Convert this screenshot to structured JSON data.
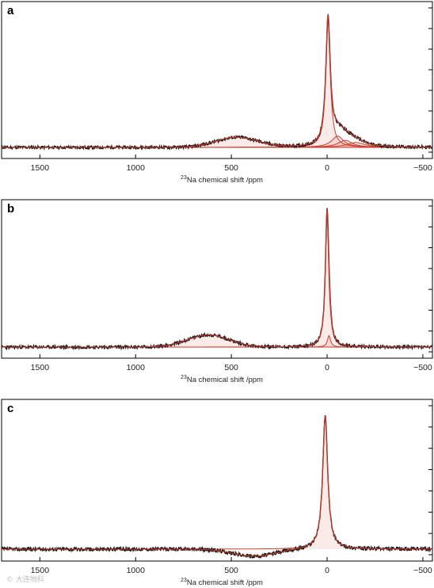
{
  "chart_data": [
    {
      "type": "line",
      "panel_label": "a",
      "xlabel_sup": "23",
      "xlabel": "Na chemical shift /ppm",
      "xlim": [
        1700,
        -550
      ],
      "x_reversed": true,
      "xticks": [
        1500,
        1000,
        500,
        0,
        -500
      ],
      "tick_labels": [
        "1500",
        "1000",
        "500",
        "0",
        "−500"
      ],
      "yticks_count": 8,
      "fit_components": [
        {
          "center": 470,
          "width": 110,
          "height": 0.07,
          "color": "#d23a2a"
        },
        {
          "center": -5,
          "width": 14,
          "height": 0.9,
          "color": "#d23a2a"
        },
        {
          "center": -55,
          "width": 38,
          "height": 0.08,
          "color": "#d23a2a"
        },
        {
          "center": -95,
          "width": 45,
          "height": 0.05,
          "color": "#d23a2a"
        },
        {
          "center": -150,
          "width": 55,
          "height": 0.035,
          "color": "#d23a2a"
        }
      ],
      "experimental": {
        "color": "#111111",
        "noise": 0.01,
        "seed": 11
      }
    },
    {
      "type": "line",
      "panel_label": "b",
      "xlabel_sup": "23",
      "xlabel": "Na chemical shift /ppm",
      "xlim": [
        1700,
        -550
      ],
      "x_reversed": true,
      "xticks": [
        1500,
        1000,
        500,
        0,
        -500
      ],
      "tick_labels": [
        "1500",
        "1000",
        "500",
        "0",
        "−500"
      ],
      "yticks_count": 8,
      "fit_components": [
        {
          "center": 620,
          "width": 110,
          "height": 0.085,
          "color": "#d23a2a"
        },
        {
          "center": 0,
          "width": 11,
          "height": 0.93,
          "color": "#d23a2a"
        },
        {
          "center": -10,
          "width": 10,
          "height": 0.08,
          "color": "#d23a2a"
        }
      ],
      "experimental": {
        "color": "#111111",
        "noise": 0.01,
        "seed": 23
      }
    },
    {
      "type": "line",
      "panel_label": "c",
      "xlabel_sup": "23",
      "xlabel": "Na chemical shift /ppm",
      "xlim": [
        1700,
        -550
      ],
      "x_reversed": true,
      "xticks": [
        1500,
        1000,
        500,
        0,
        -500
      ],
      "tick_labels": [
        "1500",
        "1000",
        "500",
        "0",
        "−500"
      ],
      "yticks_count": 8,
      "fit_components": [
        {
          "center": 10,
          "width": 16,
          "height": 0.92,
          "color": "#d23a2a"
        }
      ],
      "dip": {
        "center": 380,
        "width": 110,
        "depth": -0.05
      },
      "experimental": {
        "color": "#111111",
        "noise": 0.012,
        "seed": 37
      }
    }
  ],
  "watermark": "© 大连物科"
}
